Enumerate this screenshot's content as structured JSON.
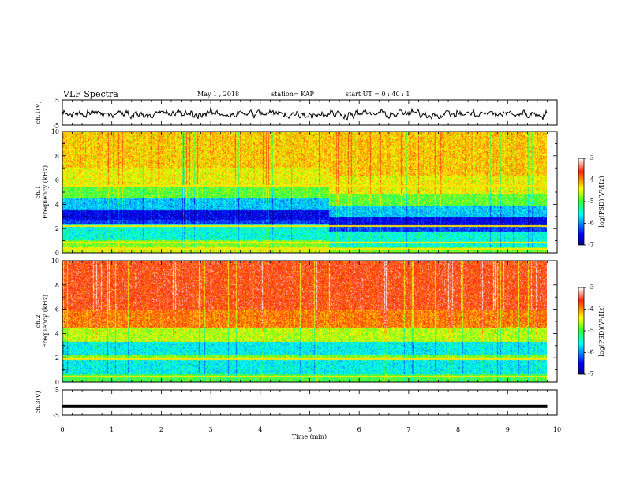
{
  "header": {
    "title": "VLF Spectra",
    "date": "May 1 , 2018",
    "station": "station= KAP",
    "start": "start UT = 0 : 40 : 1"
  },
  "colorbar": {
    "ticks": [
      "-3",
      "-4",
      "-5",
      "-6",
      "-7"
    ],
    "label": "log(PSD)(V²/Hz)"
  },
  "chart_data": [
    {
      "type": "line",
      "name": "ch1-waveform",
      "ylabel": "ch.1(V)",
      "ylim": [
        -5,
        5
      ],
      "yticks": [
        "5",
        "-5"
      ],
      "xlim": [
        0,
        10
      ],
      "description_level": "noisy signal around -0.5 V"
    },
    {
      "type": "heatmap",
      "name": "ch1-spectrogram",
      "ylabel": "ch.1 Frequency (kHz)",
      "ylim": [
        0,
        10
      ],
      "yticks": [
        "0",
        "2",
        "4",
        "6",
        "8",
        "10"
      ],
      "xlim": [
        0,
        9.8
      ],
      "color_range": [
        -7,
        -3
      ],
      "bands": [
        {
          "from_khz": 0.0,
          "to_khz": 0.5,
          "level": -4.5
        },
        {
          "from_khz": 0.5,
          "to_khz": 1.0,
          "level": -4.8
        },
        {
          "from_khz": 1.0,
          "to_khz": 2.3,
          "level": -5.5
        },
        {
          "from_khz": 2.3,
          "to_khz": 2.7,
          "level": -6.3
        },
        {
          "from_khz": 2.7,
          "to_khz": 3.5,
          "level": -6.6
        },
        {
          "from_khz": 3.5,
          "to_khz": 4.5,
          "level": -5.8
        },
        {
          "from_khz": 4.5,
          "to_khz": 5.5,
          "level": -4.9
        },
        {
          "from_khz": 5.5,
          "to_khz": 7.0,
          "level": -4.4
        },
        {
          "from_khz": 7.0,
          "to_khz": 10.0,
          "level": -4.2
        }
      ],
      "lines_khz": [
        5.5,
        2.2,
        0.8,
        0.3
      ]
    },
    {
      "type": "heatmap",
      "name": "ch2-spectrogram",
      "ylabel": "ch.2 Frequency (kHz)",
      "ylim": [
        0,
        10
      ],
      "yticks": [
        "0",
        "2",
        "4",
        "6",
        "8",
        "10"
      ],
      "xlim": [
        0,
        9.8
      ],
      "color_range": [
        -7,
        -3
      ],
      "bands": [
        {
          "from_khz": 0.0,
          "to_khz": 0.6,
          "level": -5.0
        },
        {
          "from_khz": 0.6,
          "to_khz": 1.8,
          "level": -5.6
        },
        {
          "from_khz": 1.8,
          "to_khz": 2.2,
          "level": -4.8
        },
        {
          "from_khz": 2.2,
          "to_khz": 3.3,
          "level": -5.6
        },
        {
          "from_khz": 3.3,
          "to_khz": 4.5,
          "level": -4.6
        },
        {
          "from_khz": 4.5,
          "to_khz": 6.0,
          "level": -3.9
        },
        {
          "from_khz": 6.0,
          "to_khz": 10.0,
          "level": -3.6
        }
      ],
      "lines_khz": [
        1.9,
        0.4
      ]
    },
    {
      "type": "line",
      "name": "ch3-waveform",
      "ylabel": "ch.3(V)",
      "ylim": [
        -5,
        5
      ],
      "yticks": [
        "5",
        "-5"
      ],
      "xlim": [
        0,
        10
      ],
      "constant_value": -1.5
    }
  ],
  "x_axis": {
    "label": "Time (min)",
    "ticks": [
      "0",
      "1",
      "2",
      "3",
      "4",
      "5",
      "6",
      "7",
      "8",
      "9",
      "10"
    ]
  }
}
